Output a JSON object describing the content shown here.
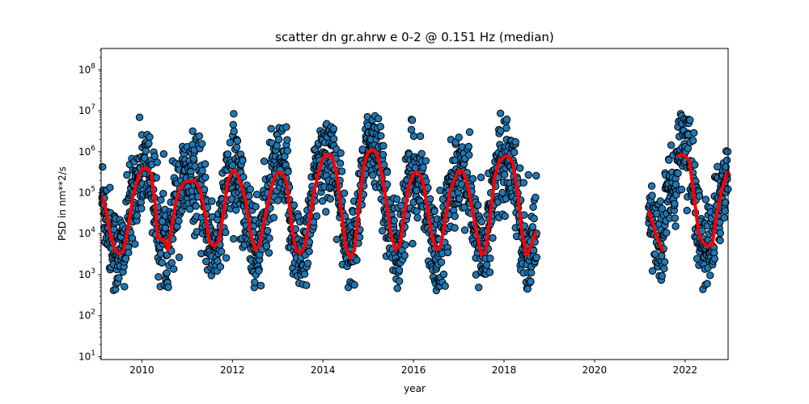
{
  "chart_data": {
    "type": "scatter",
    "title": "scatter dn gr.ahrw e 0-2 @ 0.151 Hz (median)",
    "xlabel": "year",
    "ylabel": "PSD in nm**2/s",
    "x_scale": "linear",
    "y_scale": "log",
    "xlim": [
      2009.1,
      2022.95
    ],
    "ylim": [
      8.5,
      330000000
    ],
    "xticks": [
      2010,
      2012,
      2014,
      2016,
      2018,
      2020,
      2022
    ],
    "yticks": [
      10,
      100,
      1000,
      10000,
      100000,
      1000000,
      10000000,
      100000000
    ],
    "ytick_labels": [
      {
        "base": "10",
        "exp": "1"
      },
      {
        "base": "10",
        "exp": "2"
      },
      {
        "base": "10",
        "exp": "3"
      },
      {
        "base": "10",
        "exp": "4"
      },
      {
        "base": "10",
        "exp": "5"
      },
      {
        "base": "10",
        "exp": "6"
      },
      {
        "base": "10",
        "exp": "7"
      },
      {
        "base": "10",
        "exp": "8"
      }
    ],
    "grid": false,
    "colors": {
      "scatter": "#1f77b4",
      "median": "#ff0000"
    },
    "data_segments": [
      {
        "start": 2009.12,
        "end": 2018.72
      },
      {
        "start": 2021.2,
        "end": 2022.95
      }
    ],
    "series": [
      {
        "type": "line",
        "points": [
          [
            2009.12,
            80000
          ],
          [
            2009.2,
            40000
          ],
          [
            2009.3,
            10000
          ],
          [
            2009.4,
            4000
          ],
          [
            2009.5,
            3200
          ],
          [
            2009.6,
            4000
          ],
          [
            2009.7,
            15000
          ],
          [
            2009.8,
            80000
          ],
          [
            2009.9,
            200000
          ],
          [
            2010.0,
            380000
          ],
          [
            2010.1,
            400000
          ],
          [
            2010.2,
            300000
          ],
          [
            2010.3,
            50000
          ],
          [
            2010.35,
            8000
          ],
          [
            2010.4,
            7500
          ],
          [
            2010.5,
            7000
          ],
          [
            2010.58,
            4000
          ],
          [
            2010.65,
            12000
          ],
          [
            2010.75,
            60000
          ],
          [
            2010.85,
            130000
          ],
          [
            2010.95,
            180000
          ],
          [
            2011.05,
            190000
          ],
          [
            2011.15,
            200000
          ],
          [
            2011.25,
            150000
          ],
          [
            2011.3,
            100000
          ],
          [
            2011.4,
            30000
          ],
          [
            2011.5,
            6000
          ],
          [
            2011.6,
            5000
          ],
          [
            2011.7,
            6500
          ],
          [
            2011.8,
            30000
          ],
          [
            2011.9,
            200000
          ],
          [
            2012.0,
            350000
          ],
          [
            2012.1,
            300000
          ],
          [
            2012.2,
            150000
          ],
          [
            2012.3,
            60000
          ],
          [
            2012.4,
            10000
          ],
          [
            2012.5,
            4000
          ],
          [
            2012.6,
            5000
          ],
          [
            2012.7,
            20000
          ],
          [
            2012.8,
            60000
          ],
          [
            2012.9,
            200000
          ],
          [
            2013.0,
            320000
          ],
          [
            2013.1,
            300000
          ],
          [
            2013.2,
            180000
          ],
          [
            2013.3,
            20000
          ],
          [
            2013.4,
            4000
          ],
          [
            2013.5,
            3300
          ],
          [
            2013.6,
            5000
          ],
          [
            2013.7,
            20000
          ],
          [
            2013.8,
            100000
          ],
          [
            2013.9,
            300000
          ],
          [
            2014.0,
            700000
          ],
          [
            2014.1,
            850000
          ],
          [
            2014.2,
            800000
          ],
          [
            2014.3,
            300000
          ],
          [
            2014.4,
            40000
          ],
          [
            2014.5,
            5000
          ],
          [
            2014.6,
            2500
          ],
          [
            2014.7,
            4000
          ],
          [
            2014.8,
            50000
          ],
          [
            2014.9,
            450000
          ],
          [
            2015.0,
            1000000
          ],
          [
            2015.1,
            1100000
          ],
          [
            2015.2,
            900000
          ],
          [
            2015.3,
            300000
          ],
          [
            2015.4,
            60000
          ],
          [
            2015.5,
            10000
          ],
          [
            2015.6,
            4000
          ],
          [
            2015.7,
            5000
          ],
          [
            2015.8,
            30000
          ],
          [
            2015.9,
            150000
          ],
          [
            2016.0,
            300000
          ],
          [
            2016.1,
            320000
          ],
          [
            2016.2,
            200000
          ],
          [
            2016.3,
            50000
          ],
          [
            2016.4,
            10000
          ],
          [
            2016.5,
            4000
          ],
          [
            2016.6,
            5000
          ],
          [
            2016.7,
            20000
          ],
          [
            2016.8,
            100000
          ],
          [
            2016.9,
            200000
          ],
          [
            2017.0,
            350000
          ],
          [
            2017.1,
            320000
          ],
          [
            2017.2,
            150000
          ],
          [
            2017.3,
            40000
          ],
          [
            2017.4,
            10000
          ],
          [
            2017.5,
            3000
          ],
          [
            2017.6,
            4000
          ],
          [
            2017.7,
            30000
          ],
          [
            2017.8,
            250000
          ],
          [
            2017.9,
            600000
          ],
          [
            2018.0,
            750000
          ],
          [
            2018.1,
            800000
          ],
          [
            2018.2,
            500000
          ],
          [
            2018.3,
            100000
          ],
          [
            2018.4,
            10000
          ],
          [
            2018.5,
            3000
          ],
          [
            2018.6,
            5000
          ],
          [
            2018.7,
            11000
          ]
        ]
      },
      {
        "type": "line",
        "points": [
          [
            2021.2,
            35000
          ],
          [
            2021.3,
            15000
          ],
          [
            2021.4,
            7000
          ],
          [
            2021.5,
            4000
          ]
        ]
      },
      {
        "type": "line",
        "points": [
          [
            2021.85,
            800000
          ],
          [
            2021.95,
            850000
          ],
          [
            2022.05,
            700000
          ],
          [
            2022.1,
            550000
          ],
          [
            2022.2,
            80000
          ],
          [
            2022.3,
            10000
          ],
          [
            2022.4,
            6000
          ],
          [
            2022.5,
            5000
          ],
          [
            2022.6,
            5200
          ],
          [
            2022.7,
            30000
          ],
          [
            2022.8,
            100000
          ],
          [
            2022.9,
            250000
          ],
          [
            2022.95,
            320000
          ]
        ]
      }
    ]
  }
}
